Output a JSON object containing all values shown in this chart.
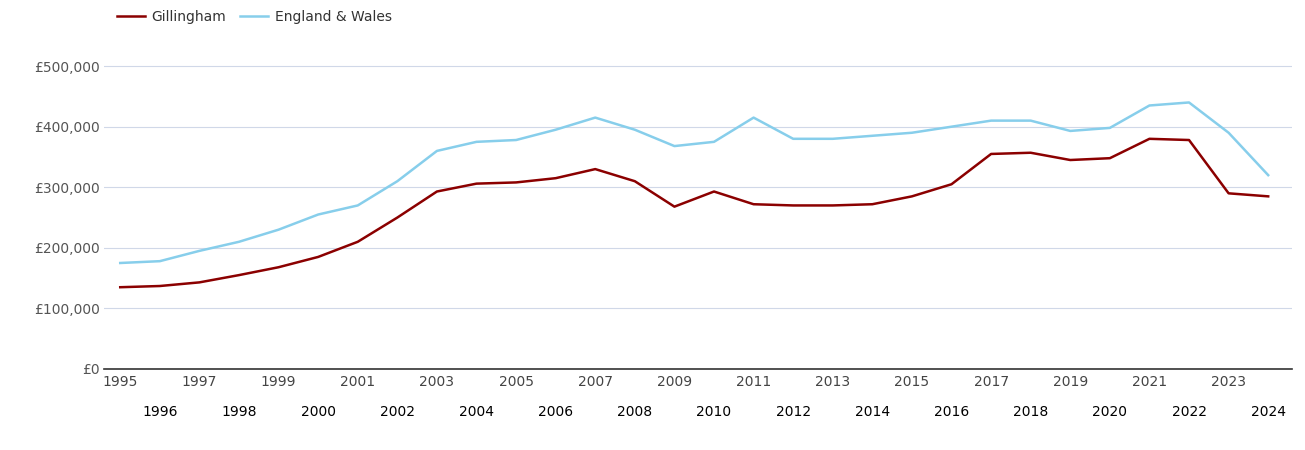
{
  "years": [
    1995,
    1996,
    1997,
    1998,
    1999,
    2000,
    2001,
    2002,
    2003,
    2004,
    2005,
    2006,
    2007,
    2008,
    2009,
    2010,
    2011,
    2012,
    2013,
    2014,
    2015,
    2016,
    2017,
    2018,
    2019,
    2020,
    2021,
    2022,
    2023,
    2024
  ],
  "gillingham": [
    135000,
    137000,
    143000,
    155000,
    168000,
    185000,
    210000,
    250000,
    293000,
    306000,
    308000,
    315000,
    330000,
    310000,
    268000,
    293000,
    272000,
    270000,
    270000,
    272000,
    285000,
    305000,
    355000,
    357000,
    345000,
    348000,
    380000,
    378000,
    290000,
    285000
  ],
  "england_wales": [
    175000,
    178000,
    195000,
    210000,
    230000,
    255000,
    270000,
    310000,
    360000,
    375000,
    378000,
    395000,
    415000,
    395000,
    368000,
    375000,
    415000,
    380000,
    380000,
    385000,
    390000,
    400000,
    410000,
    410000,
    393000,
    398000,
    435000,
    440000,
    390000,
    320000
  ],
  "gillingham_color": "#8B0000",
  "england_wales_color": "#87CEEB",
  "background_color": "#ffffff",
  "grid_color": "#d0d8e8",
  "ylim": [
    0,
    520000
  ],
  "yticks": [
    0,
    100000,
    200000,
    300000,
    400000,
    500000
  ],
  "ytick_labels": [
    "£0",
    "£100,000",
    "£200,000",
    "£300,000",
    "£400,000",
    "£500,000"
  ],
  "legend_labels": [
    "Gillingham",
    "England & Wales"
  ],
  "line_width": 1.8,
  "xlim": [
    1994.6,
    2024.6
  ]
}
